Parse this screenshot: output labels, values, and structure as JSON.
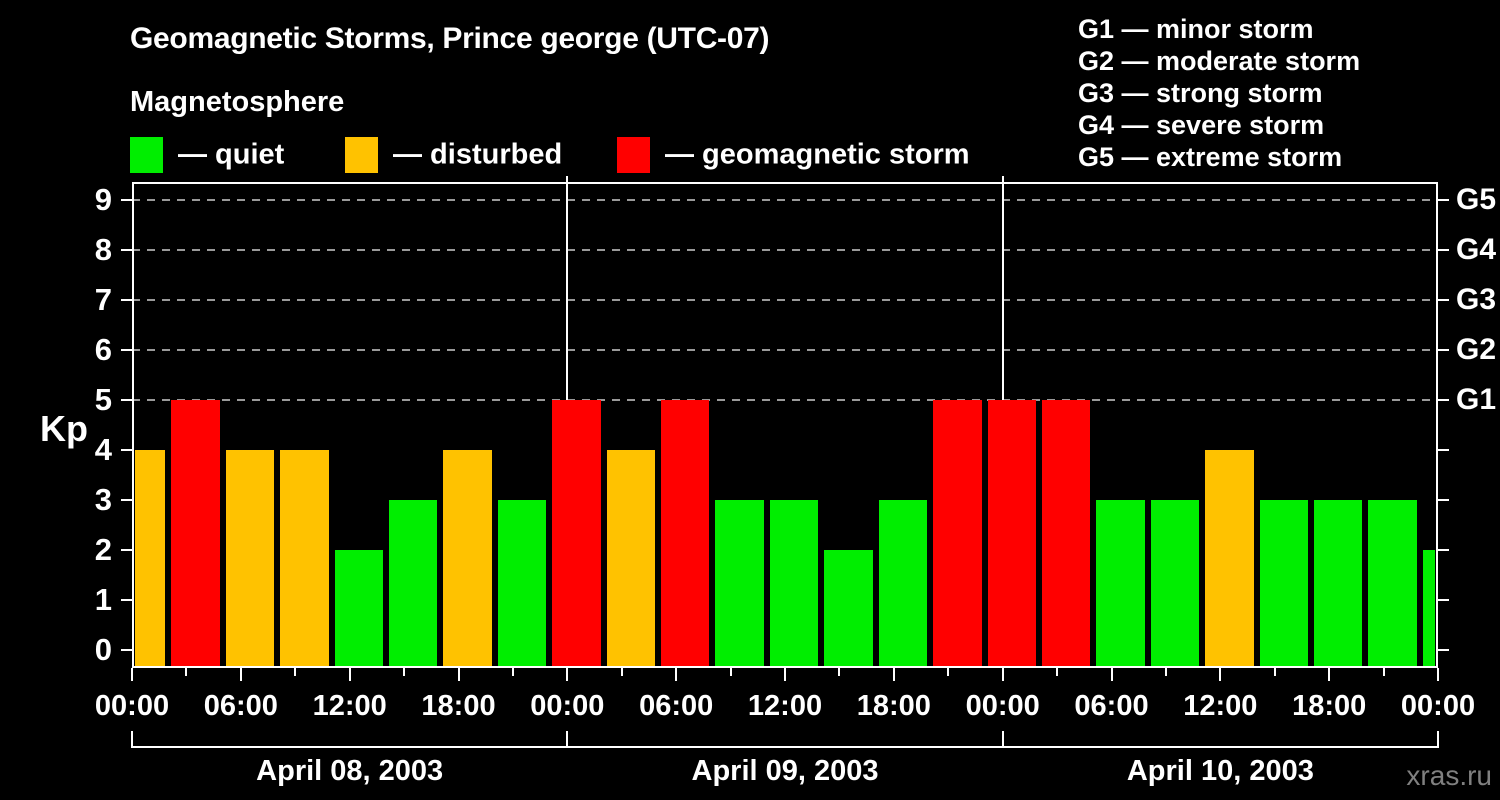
{
  "watermark": "xras.ru",
  "chart_data": {
    "type": "bar",
    "title": "Geomagnetic Storms, Prince george (UTC-07)",
    "subtitle": "Magnetosphere",
    "ylabel": "Kp",
    "ylim": [
      0,
      9
    ],
    "y_ticks": [
      0,
      1,
      2,
      3,
      4,
      5,
      6,
      7,
      8,
      9
    ],
    "gridlines_kp": [
      5,
      6,
      7,
      8,
      9
    ],
    "right_axis_labels": [
      {
        "kp": 5,
        "label": "G1"
      },
      {
        "kp": 6,
        "label": "G2"
      },
      {
        "kp": 7,
        "label": "G3"
      },
      {
        "kp": 8,
        "label": "G4"
      },
      {
        "kp": 9,
        "label": "G5"
      }
    ],
    "g_scale_legend": [
      "G1 — minor storm",
      "G2 — moderate storm",
      "G3 — strong storm",
      "G4 — severe storm",
      "G5 — extreme storm"
    ],
    "legend_items": [
      {
        "label": "— quiet",
        "status": "quiet"
      },
      {
        "label": "— disturbed",
        "status": "disturbed"
      },
      {
        "label": "— geomagnetic storm",
        "status": "storm"
      }
    ],
    "status_colors": {
      "quiet": "#00EE00",
      "disturbed": "#FFC200",
      "storm": "#FF0000"
    },
    "x_hours_total": 72,
    "x_minor_tick_every_hours": 3,
    "x_major_tick_every_hours": 6,
    "x_major_labels": [
      "00:00",
      "06:00",
      "12:00",
      "18:00",
      "00:00",
      "06:00",
      "12:00",
      "18:00",
      "00:00",
      "06:00",
      "12:00",
      "18:00",
      "00:00"
    ],
    "day_separators_hours": [
      24,
      48
    ],
    "days": [
      {
        "label": "April 08, 2003",
        "start_hour": 0,
        "end_hour": 24
      },
      {
        "label": "April 09, 2003",
        "start_hour": 24,
        "end_hour": 48
      },
      {
        "label": "April 10, 2003",
        "start_hour": 48,
        "end_hour": 72
      }
    ],
    "bars": [
      {
        "start_hour": 0,
        "end_hour": 2,
        "kp": 4,
        "status": "disturbed"
      },
      {
        "start_hour": 2,
        "end_hour": 5,
        "kp": 5,
        "status": "storm"
      },
      {
        "start_hour": 5,
        "end_hour": 8,
        "kp": 4,
        "status": "disturbed"
      },
      {
        "start_hour": 8,
        "end_hour": 11,
        "kp": 4,
        "status": "disturbed"
      },
      {
        "start_hour": 11,
        "end_hour": 14,
        "kp": 2,
        "status": "quiet"
      },
      {
        "start_hour": 14,
        "end_hour": 17,
        "kp": 3,
        "status": "quiet"
      },
      {
        "start_hour": 17,
        "end_hour": 20,
        "kp": 4,
        "status": "disturbed"
      },
      {
        "start_hour": 20,
        "end_hour": 23,
        "kp": 3,
        "status": "quiet"
      },
      {
        "start_hour": 23,
        "end_hour": 26,
        "kp": 5,
        "status": "storm"
      },
      {
        "start_hour": 26,
        "end_hour": 29,
        "kp": 4,
        "status": "disturbed"
      },
      {
        "start_hour": 29,
        "end_hour": 32,
        "kp": 5,
        "status": "storm"
      },
      {
        "start_hour": 32,
        "end_hour": 35,
        "kp": 3,
        "status": "quiet"
      },
      {
        "start_hour": 35,
        "end_hour": 38,
        "kp": 3,
        "status": "quiet"
      },
      {
        "start_hour": 38,
        "end_hour": 41,
        "kp": 2,
        "status": "quiet"
      },
      {
        "start_hour": 41,
        "end_hour": 44,
        "kp": 3,
        "status": "quiet"
      },
      {
        "start_hour": 44,
        "end_hour": 47,
        "kp": 5,
        "status": "storm"
      },
      {
        "start_hour": 47,
        "end_hour": 50,
        "kp": 5,
        "status": "storm"
      },
      {
        "start_hour": 50,
        "end_hour": 53,
        "kp": 5,
        "status": "storm"
      },
      {
        "start_hour": 53,
        "end_hour": 56,
        "kp": 3,
        "status": "quiet"
      },
      {
        "start_hour": 56,
        "end_hour": 59,
        "kp": 3,
        "status": "quiet"
      },
      {
        "start_hour": 59,
        "end_hour": 62,
        "kp": 4,
        "status": "disturbed"
      },
      {
        "start_hour": 62,
        "end_hour": 65,
        "kp": 3,
        "status": "quiet"
      },
      {
        "start_hour": 65,
        "end_hour": 68,
        "kp": 3,
        "status": "quiet"
      },
      {
        "start_hour": 68,
        "end_hour": 71,
        "kp": 3,
        "status": "quiet"
      },
      {
        "start_hour": 71,
        "end_hour": 72,
        "kp": 2,
        "status": "quiet"
      }
    ]
  }
}
